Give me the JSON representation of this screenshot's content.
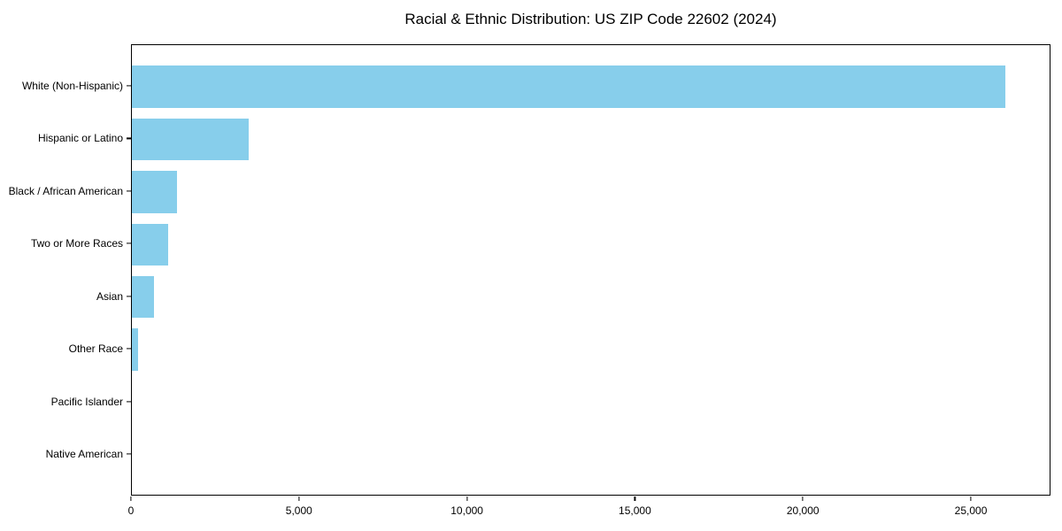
{
  "chart_data": {
    "type": "bar",
    "orientation": "horizontal",
    "title": "Racial & Ethnic Distribution: US ZIP Code 22602 (2024)",
    "categories": [
      "White (Non-Hispanic)",
      "Hispanic or Latino",
      "Black / African American",
      "Two or More Races",
      "Asian",
      "Other Race",
      "Pacific Islander",
      "Native American"
    ],
    "values": [
      26000,
      3480,
      1340,
      1080,
      660,
      190,
      0,
      0
    ],
    "bar_color": "#87CEEB",
    "xlabel": "",
    "ylabel": "",
    "xlim": [
      0,
      27370
    ],
    "x_ticks": [
      0,
      5000,
      10000,
      15000,
      20000,
      25000
    ],
    "x_tick_labels": [
      "0",
      "5,000",
      "10,000",
      "15,000",
      "20,000",
      "25,000"
    ],
    "grid": false,
    "legend": false,
    "bar_height_fraction": 0.8,
    "axis_color": "#000000",
    "background_color": "#ffffff"
  }
}
